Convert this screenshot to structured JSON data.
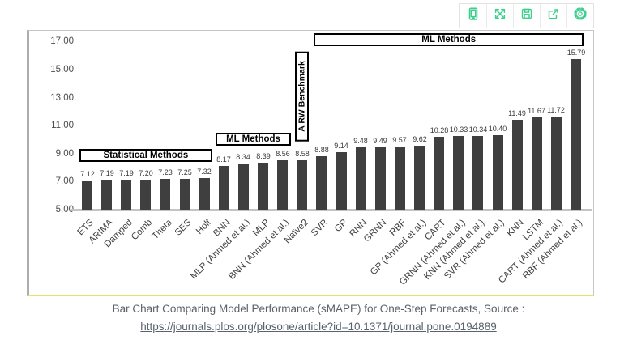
{
  "toolbar": {
    "buttons": [
      {
        "icon": "mobile-device-icon"
      },
      {
        "icon": "expand-icon"
      },
      {
        "icon": "save-icon"
      },
      {
        "icon": "export-icon"
      },
      {
        "icon": "settings-gear-icon"
      }
    ]
  },
  "chart_data": {
    "type": "bar",
    "title": "Bar Chart Comparing Model Performance (sMAPE) for One-Step Forecasts",
    "xlabel": "",
    "ylabel": "",
    "ylim": [
      5,
      17
    ],
    "yticks": [
      5,
      7,
      9,
      11,
      13,
      15,
      17
    ],
    "grid": false,
    "legend": null,
    "value_labels": true,
    "bar_color": "#3F3F3F",
    "categories": [
      "ETS",
      "ARIMA",
      "Damped",
      "Comb",
      "Theta",
      "SES",
      "Holt",
      "BNN",
      "MLP (Ahmed et al.)",
      "MLP",
      "BNN (Ahmed et al.)",
      "Naïve2",
      "SVR",
      "GP",
      "RNN",
      "GRNN",
      "RBF",
      "GP (Ahmed et al.)",
      "CART",
      "GRNN (Ahmed et al.)",
      "KNN (Ahmed et al.)",
      "SVR (Ahmed et al.)",
      "KNN",
      "LSTM",
      "CART (Ahmed et al.)",
      "RBF (Ahmed et al.)"
    ],
    "values": [
      7.12,
      7.19,
      7.19,
      7.2,
      7.23,
      7.25,
      7.32,
      8.17,
      8.34,
      8.39,
      8.56,
      8.58,
      8.88,
      9.14,
      9.48,
      9.49,
      9.57,
      9.62,
      10.28,
      10.33,
      10.34,
      10.4,
      11.49,
      11.67,
      11.72,
      15.79
    ],
    "annotations": [
      {
        "text": "Statistical Methods",
        "kind": "horizontal",
        "from_bar": 0,
        "to_bar": 6,
        "center_value": 8.95
      },
      {
        "text": "ML Methods",
        "kind": "horizontal",
        "from_bar": 7,
        "to_bar": 10,
        "center_value": 10.1
      },
      {
        "text": "A RW Benchmark",
        "kind": "vertical",
        "bar": 11,
        "top_value": 16.35,
        "bottom_value": 9.95
      },
      {
        "text": "ML Methods",
        "kind": "horizontal",
        "from_bar": 12,
        "to_bar": 25,
        "center_value": 17.2
      }
    ]
  },
  "caption": {
    "title": "Bar Chart Comparing Model Performance (sMAPE) for One-Step Forecasts, Source :",
    "link_text": "https://journals.plos.org/plosone/article?id=10.1371/journal.pone.0194889"
  },
  "colors": {
    "accent_green": "#3ECF8E",
    "bar": "#3F3F3F",
    "selection_yellow": "#E3E464",
    "axis_text": "#4D4D4D",
    "caption_text": "#5A626C"
  }
}
